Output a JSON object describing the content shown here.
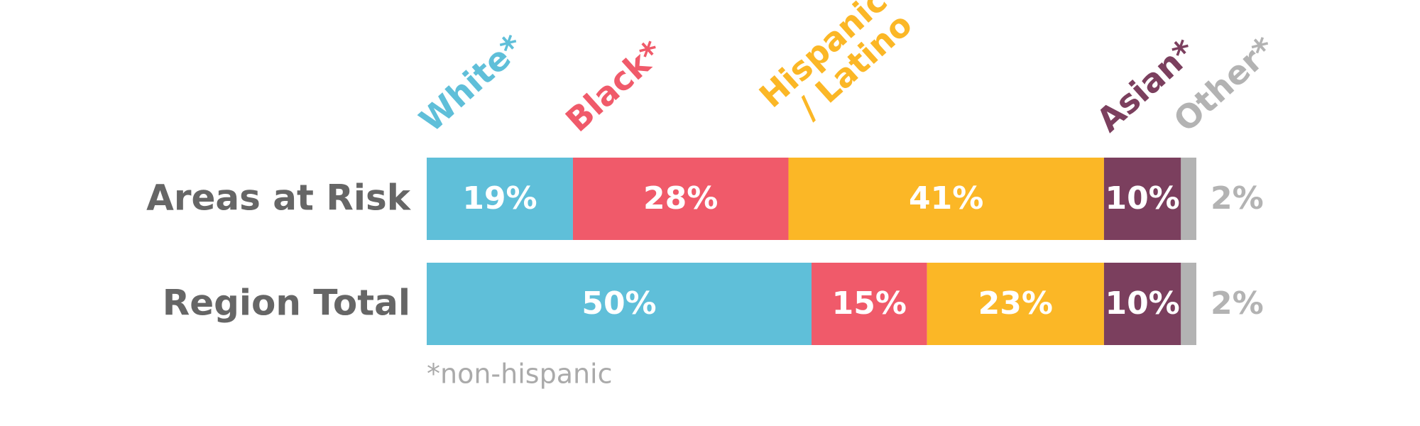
{
  "chart_data": {
    "type": "stacked-bar",
    "orientation": "horizontal",
    "categories": [
      "Areas at Risk",
      "Region Total"
    ],
    "xlim": [
      0,
      100
    ],
    "series": [
      {
        "name": "White*",
        "color": "#5fbfd9",
        "values": [
          19,
          50
        ],
        "value_labels": [
          "19%",
          "50%"
        ]
      },
      {
        "name": "Black*",
        "color": "#f05a6a",
        "values": [
          28,
          15
        ],
        "value_labels": [
          "28%",
          "15%"
        ]
      },
      {
        "name": "Hispanic / Latino",
        "color": "#fbb726",
        "values": [
          41,
          23
        ],
        "value_labels": [
          "41%",
          "23%"
        ]
      },
      {
        "name": "Asian*",
        "color": "#7b3f5e",
        "values": [
          10,
          10
        ],
        "value_labels": [
          "10%",
          "10%"
        ]
      },
      {
        "name": "Other*",
        "color": "#b3b3b3",
        "values": [
          2,
          2
        ],
        "value_labels": [
          "2%",
          "2%"
        ]
      }
    ],
    "footnote": "*non-hispanic"
  }
}
